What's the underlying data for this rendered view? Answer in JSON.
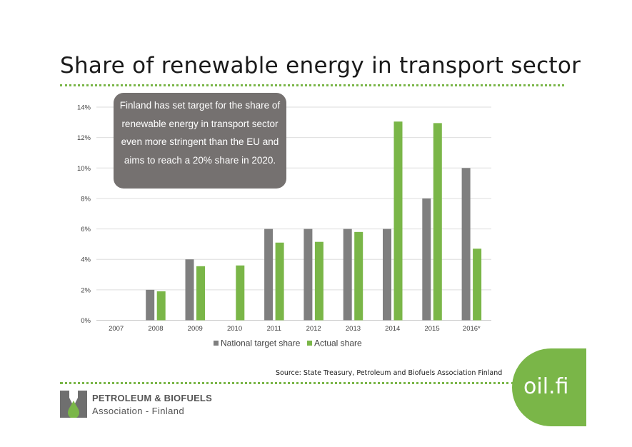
{
  "title": "Share of renewable energy in transport sector",
  "callout": "Finland has set target for the share of renewable energy in transport sector even more stringent than the EU and aims to reach a 20% share in 2020.",
  "source": "Source: State Treasury, Petroleum and Biofuels Association Finland",
  "logo": {
    "line1": "PETROLEUM & BIOFUELS",
    "line2": "Association - Finland",
    "badge": "oil.fi"
  },
  "colors": {
    "target": "#7f7f7f",
    "actual": "#7ab648",
    "accent": "#7ab648",
    "callout_bg": "#757170"
  },
  "chart_data": {
    "type": "bar",
    "categories": [
      "2007",
      "2008",
      "2009",
      "2010",
      "2011",
      "2012",
      "2013",
      "2014",
      "2015",
      "2016*"
    ],
    "series": [
      {
        "name": "National target share",
        "values": [
          0,
          2,
          4,
          0,
          6,
          6,
          6,
          6,
          8,
          10
        ]
      },
      {
        "name": "Actual share",
        "values": [
          0,
          1.9,
          3.55,
          3.6,
          5.1,
          5.15,
          5.8,
          13.05,
          12.95,
          4.7
        ]
      }
    ],
    "y_ticks": [
      "0%",
      "2%",
      "4%",
      "6%",
      "8%",
      "10%",
      "12%",
      "14%"
    ],
    "ylim": [
      0,
      14
    ],
    "grid": true,
    "legend_position": "bottom"
  }
}
